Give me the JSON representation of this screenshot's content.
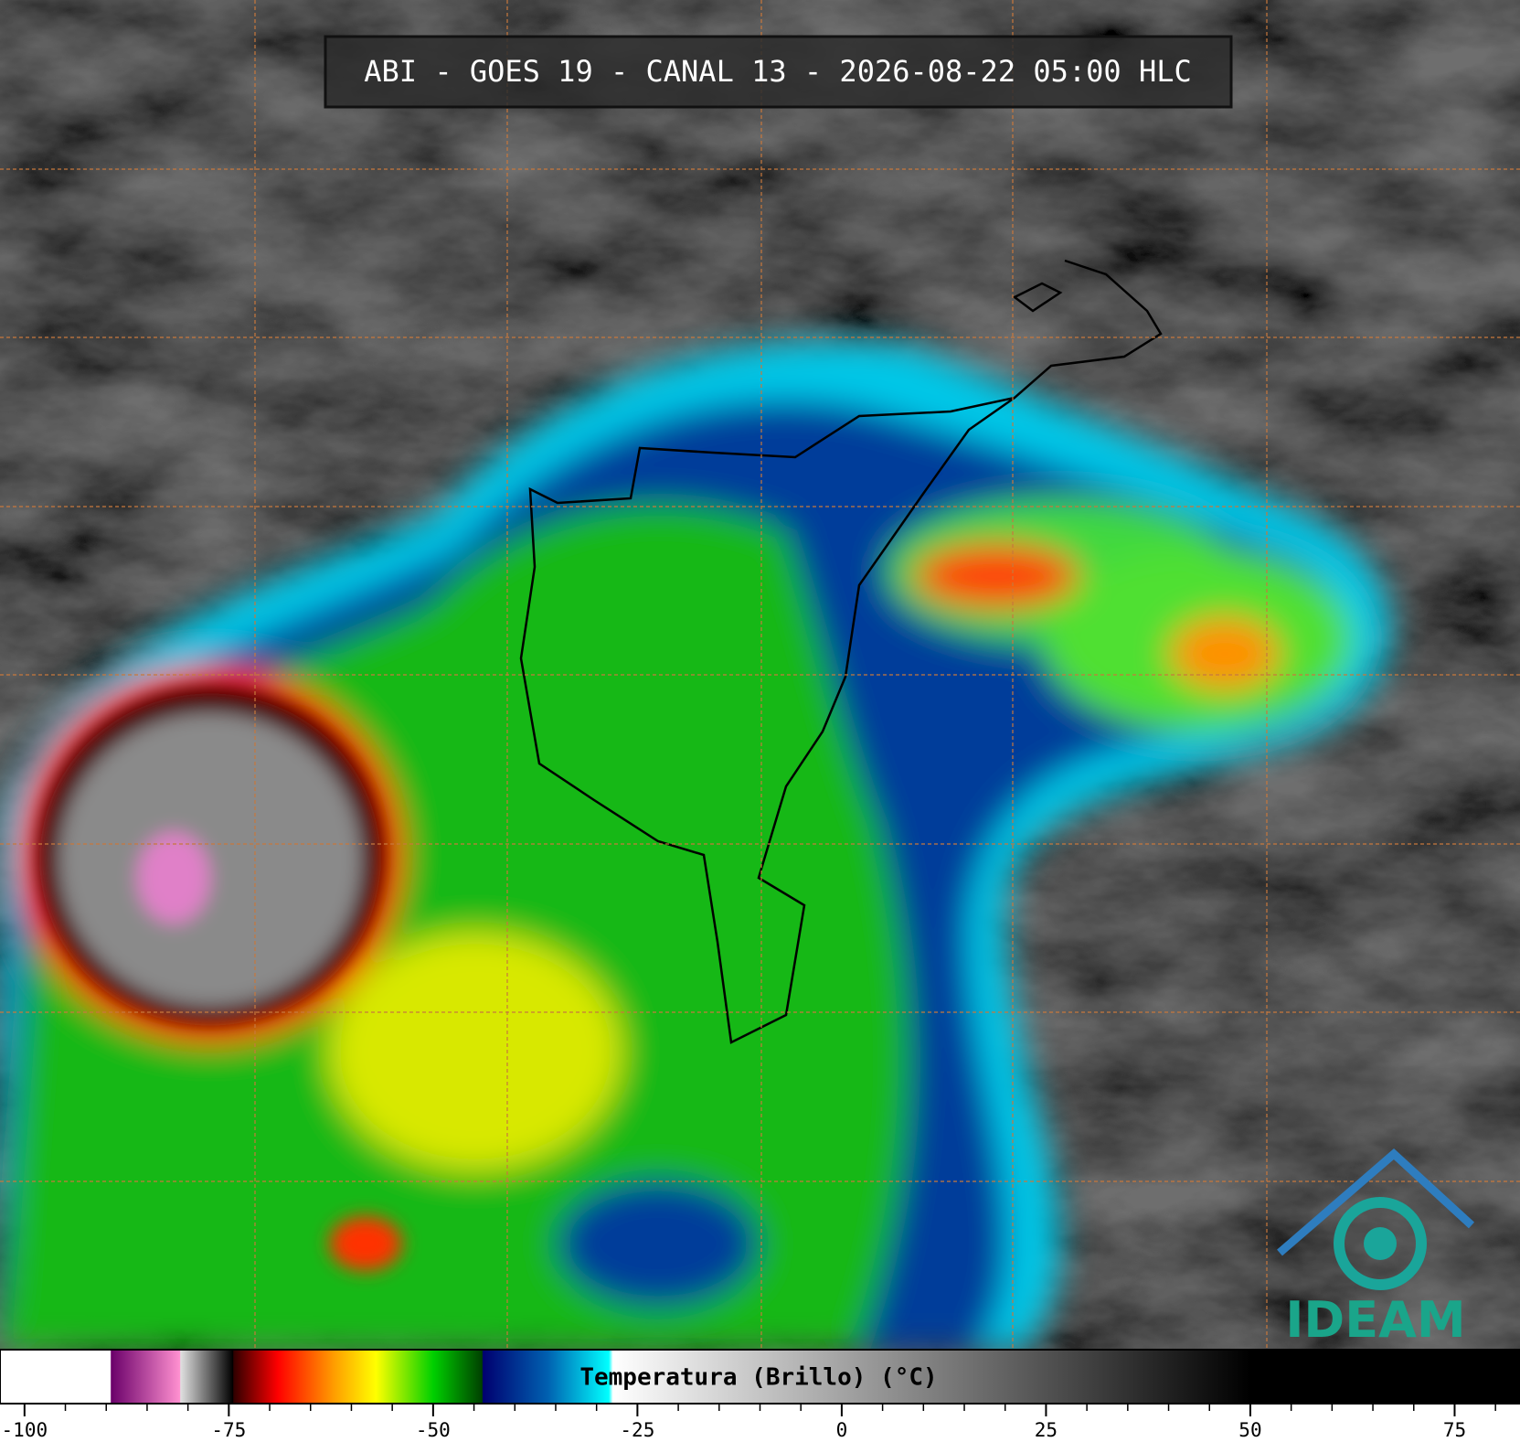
{
  "title": "ABI - GOES 19 - CANAL 13 - 2026-08-22 05:00 HLC",
  "logo": "IDEAM",
  "colorbar": {
    "label": "Temperatura (Brillo) (°C)",
    "xlim": [
      -103,
      83
    ],
    "xticks": [
      -100,
      -75,
      -50,
      -25,
      0,
      25,
      50,
      75
    ],
    "minor_xticks": [
      -95,
      -90,
      -85,
      -80,
      -70,
      -65,
      -60,
      -55,
      -45,
      -40,
      -35,
      -30,
      -20,
      -15,
      -10,
      -5,
      5,
      10,
      15,
      20,
      30,
      35,
      40,
      45,
      55,
      60,
      65,
      70,
      80
    ],
    "stops": [
      {
        "value": -103,
        "color": "#ffffff"
      },
      {
        "value": -89.5,
        "color": "#ffffff"
      },
      {
        "value": -89.4,
        "color": "#6a006a"
      },
      {
        "value": -81,
        "color": "#ff90d0"
      },
      {
        "value": -80.9,
        "color": "#e0e0e0"
      },
      {
        "value": -74.5,
        "color": "#000000"
      },
      {
        "value": -74.4,
        "color": "#300000"
      },
      {
        "value": -69,
        "color": "#ff0000"
      },
      {
        "value": -62,
        "color": "#ffa000"
      },
      {
        "value": -57,
        "color": "#ffff00"
      },
      {
        "value": -50,
        "color": "#00d000"
      },
      {
        "value": -44,
        "color": "#004000"
      },
      {
        "value": -43.9,
        "color": "#000070"
      },
      {
        "value": -36,
        "color": "#0060b0"
      },
      {
        "value": -28.5,
        "color": "#00ffff"
      },
      {
        "value": -28,
        "color": "#ffffff"
      },
      {
        "value": 50,
        "color": "#000000"
      },
      {
        "value": 83,
        "color": "#000000"
      }
    ]
  }
}
